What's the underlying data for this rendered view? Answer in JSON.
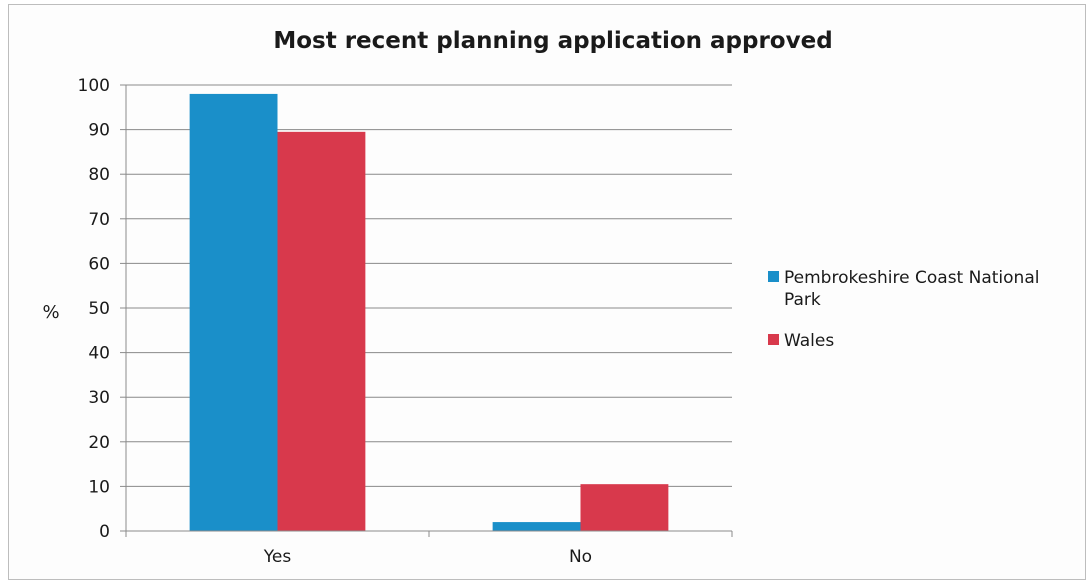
{
  "chart_data": {
    "type": "bar",
    "title": "Most recent planning application approved",
    "xlabel": "",
    "ylabel": "%",
    "categories": [
      "Yes",
      "No"
    ],
    "series": [
      {
        "name": "Pembrokeshire Coast National Park",
        "values": [
          98,
          2
        ],
        "color": "#1a8fc9"
      },
      {
        "name": "Wales",
        "values": [
          89.5,
          10.5
        ],
        "color": "#d8394c"
      }
    ],
    "ylim": [
      0,
      100
    ],
    "yticks": [
      0,
      10,
      20,
      30,
      40,
      50,
      60,
      70,
      80,
      90,
      100
    ],
    "grid": true,
    "legend_position": "right"
  }
}
